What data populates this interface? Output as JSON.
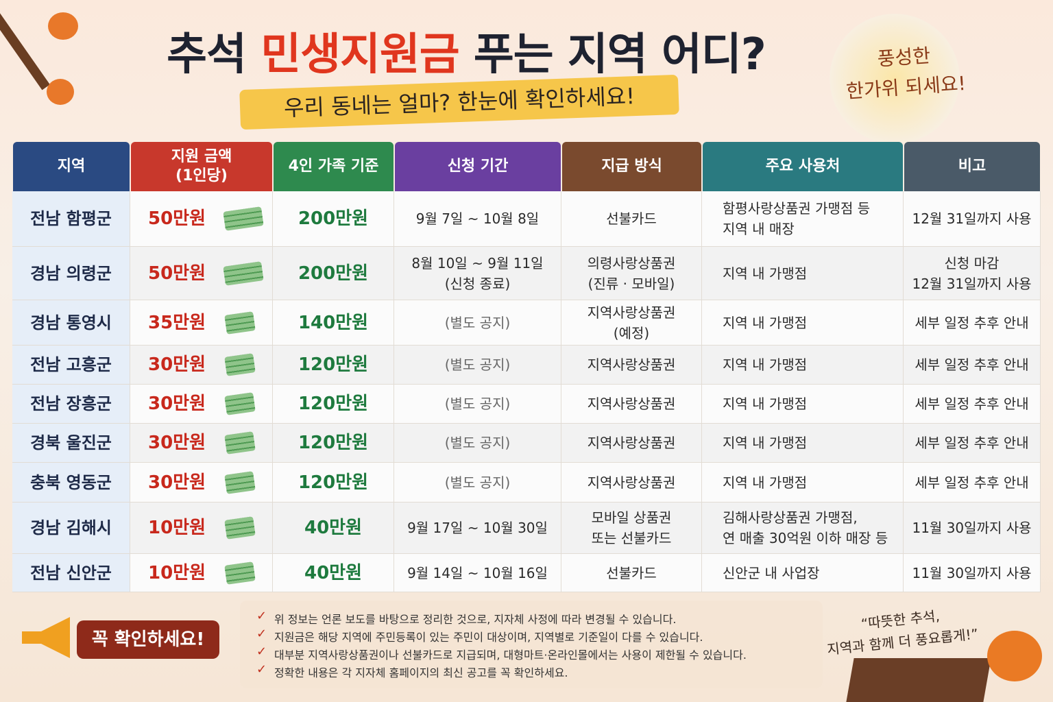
{
  "header": {
    "title": [
      "추석 ",
      "민생지원금",
      " 푸는 지역 어디?"
    ],
    "subtitle": "우리 동네는 얼마? 한눈에 확인하세요!",
    "greeting": "풍성한\n한가위 되세요!"
  },
  "table": {
    "columns": [
      "지역",
      "지원 금액\n(1인당)",
      "4인 가족 기준",
      "신청 기간",
      "지급 방식",
      "주요 사용처",
      "비고"
    ],
    "rows": [
      [
        "전남 함평군",
        "50만원",
        "200만원",
        "9월 7일 ~ 10월 8일",
        "선불카드",
        "함평사랑상품권 가맹점 등\n지역 내 매장",
        "12월 31일까지 사용"
      ],
      [
        "경남 의령군",
        "50만원",
        "200만원",
        "8월 10일 ~ 9월 11일\n(신청 종료)",
        "의령사랑상품권\n(진류 · 모바일)",
        "지역 내 가맹점",
        "신청 마감\n12월 31일까지 사용"
      ],
      [
        "경남 통영시",
        "35만원",
        "140만원",
        "(별도 공지)",
        "지역사랑상품권\n(예정)",
        "지역 내 가맹점",
        "세부 일정 추후 안내"
      ],
      [
        "전남 고흥군",
        "30만원",
        "120만원",
        "(별도 공지)",
        "지역사랑상품권",
        "지역 내 가맹점",
        "세부 일정 추후 안내"
      ],
      [
        "전남 장흥군",
        "30만원",
        "120만원",
        "(별도 공지)",
        "지역사랑상품권",
        "지역 내 가맹점",
        "세부 일정 추후 안내"
      ],
      [
        "경북 울진군",
        "30만원",
        "120만원",
        "(별도 공지)",
        "지역사랑상품권",
        "지역 내 가맹점",
        "세부 일정 추후 안내"
      ],
      [
        "충북 영동군",
        "30만원",
        "120만원",
        "(별도 공지)",
        "지역사랑상품권",
        "지역 내 가맹점",
        "세부 일정 추후 안내"
      ],
      [
        "경남 김해시",
        "10만원",
        "40만원",
        "9월 17일 ~ 10월 30일",
        "모바일 상품권\n또는 선불카드",
        "김해사랑상품권 가맹점,\n연 매출 30억원 이하 매장 등",
        "11월 30일까지 사용"
      ],
      [
        "전남 신안군",
        "10만원",
        "40만원",
        "9월 14일 ~ 10월 16일",
        "선불카드",
        "신안군 내 사업장",
        "11월 30일까지 사용"
      ]
    ]
  },
  "footer": {
    "callout": "꼭 확인하세요!",
    "notes": [
      "위 정보는 언론 보도를 바탕으로 정리한 것으로, 지자체 사정에 따라 변경될 수 있습니다.",
      "지원금은 해당 지역에 주민등록이 있는 주민이 대상이며, 지역별로 기준일이 다를 수 있습니다.",
      "대부분 지역사랑상품권이나 선불카드로 지급되며, 대형마트·온라인몰에서는 사용이 제한될 수 있습니다.",
      "정확한 내용은 각 지자체 홈페이지의 최신 공고를 꼭 확인하세요."
    ],
    "quote": "“따뜻한 추석,\n지역과 함께 더 풍요롭게!”"
  }
}
